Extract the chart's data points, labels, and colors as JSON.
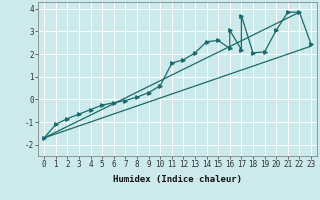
{
  "title": "",
  "xlabel": "Humidex (Indice chaleur)",
  "xlim": [
    -0.5,
    23.5
  ],
  "ylim": [
    -2.5,
    4.3
  ],
  "xticks": [
    0,
    1,
    2,
    3,
    4,
    5,
    6,
    7,
    8,
    9,
    10,
    11,
    12,
    13,
    14,
    15,
    16,
    17,
    18,
    19,
    20,
    21,
    22,
    23
  ],
  "yticks": [
    -2,
    -1,
    0,
    1,
    2,
    3,
    4
  ],
  "bg_color": "#cce9eb",
  "line_color": "#1a6b6b",
  "grid_color": "#ffffff",
  "data_x": [
    0,
    1,
    2,
    3,
    4,
    5,
    6,
    7,
    8,
    9,
    10,
    11,
    12,
    13,
    14,
    15,
    16,
    16,
    17,
    17,
    18,
    19,
    20,
    21,
    22,
    23
  ],
  "data_y": [
    -1.7,
    -1.1,
    -0.85,
    -0.65,
    -0.45,
    -0.25,
    -0.15,
    -0.05,
    0.1,
    0.3,
    0.6,
    1.6,
    1.75,
    2.05,
    2.55,
    2.6,
    2.25,
    3.05,
    2.2,
    3.7,
    2.05,
    2.1,
    3.05,
    3.85,
    3.85,
    2.45
  ],
  "trend1_x": [
    0,
    23
  ],
  "trend1_y": [
    -1.7,
    2.35
  ],
  "trend2_x": [
    0,
    22
  ],
  "trend2_y": [
    -1.7,
    3.85
  ],
  "xlabel_fontsize": 6.5,
  "tick_fontsize": 5.5,
  "linewidth": 0.9,
  "markersize": 2.5
}
